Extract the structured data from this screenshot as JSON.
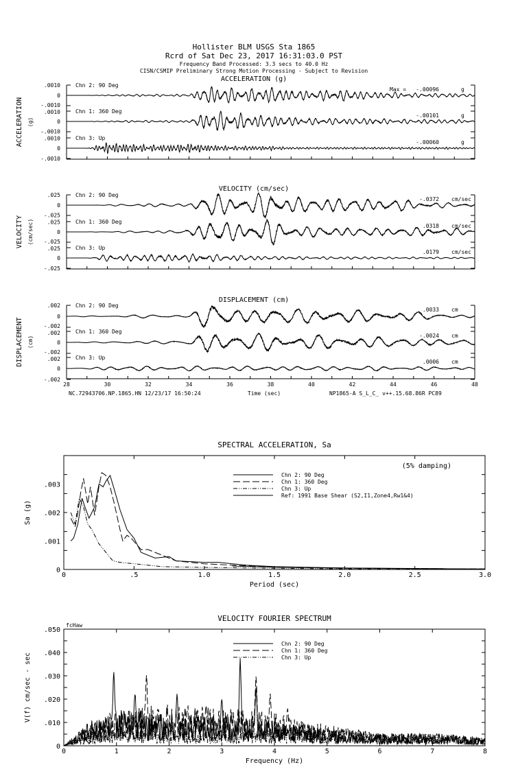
{
  "header": {
    "line1": "Hollister BLM    USGS Sta 1865",
    "line2": "Rcrd of Sat Dec 23, 2017 16:31:03.0 PST",
    "line3": "Frequency Band Processed: 3.3 secs to 40.0 Hz",
    "line4": "CISN/CSMIP Preliminary Strong Motion Processing - Subject to Revision"
  },
  "footer": {
    "left": "NC.72943706.NP.1865.HN 12/23/17 16:50:24",
    "right": "NP1865-A  S_L_C_  v++.15.68.86R PC89"
  },
  "chart_data": [
    {
      "type": "line",
      "title": "ACCELERATION (g)",
      "ylabel": "ACCELERATION",
      "yunit": "(g)",
      "xlabel": "Time (sec)",
      "xlim": [
        28,
        48
      ],
      "xticks": [
        "28",
        "30",
        "32",
        "34",
        "36",
        "38",
        "40",
        "42",
        "44",
        "46",
        "48"
      ],
      "ytick_labels": [
        ".0010",
        "0",
        "-.0010"
      ],
      "ylim": [
        -0.001,
        0.001
      ],
      "max_prefix": "Max =",
      "channels": [
        {
          "name": "Chn 2: 90 Deg",
          "peak": "-.00096",
          "unit": "g",
          "dominant_freq_hz": 3,
          "envelope": [
            0,
            0,
            5e-05,
            0.0001,
            0.0001,
            0.0001,
            0.0001,
            0.0009,
            0.0007,
            0.0006,
            0.0008,
            0.0005,
            0.0004,
            0.0005,
            0.0005,
            0.0003,
            0.0003,
            0.0002,
            0.0002,
            0.0002,
            0.0001
          ]
        },
        {
          "name": "Chn 1: 360 Deg",
          "peak": "-.00101",
          "unit": "g",
          "dominant_freq_hz": 3,
          "envelope": [
            0,
            0,
            5e-05,
            0.0001,
            0.0001,
            0.0001,
            0.0001,
            0.001,
            0.0008,
            0.0006,
            0.0006,
            0.0004,
            0.0003,
            0.0003,
            0.0003,
            0.0003,
            0.0002,
            0.0002,
            0.0002,
            0.0002,
            0.0001
          ]
        },
        {
          "name": "Chn 3: Up",
          "peak": "-.00060",
          "unit": "g",
          "dominant_freq_hz": 6,
          "envelope": [
            0,
            0,
            0.0005,
            0.0004,
            0.0003,
            0.0003,
            0.0004,
            0.0003,
            0.0002,
            0.0002,
            0.0002,
            0.0001,
            0.0001,
            0.0001,
            0.0001,
            0.0001,
            0.0001,
            0.0001,
            0.0001,
            0.0001,
            5e-05
          ]
        }
      ]
    },
    {
      "type": "line",
      "title": "VELOCITY (cm/sec)",
      "ylabel": "VELOCITY",
      "yunit": "(cm/sec)",
      "xlim": [
        28,
        48
      ],
      "ytick_labels": [
        ".025",
        "0",
        "-.025"
      ],
      "ylim": [
        -0.025,
        0.025
      ],
      "channels": [
        {
          "name": "Chn 2: 90 Deg",
          "peak": "-.0372",
          "unit": "cm/sec",
          "dominant_freq_hz": 1.5,
          "envelope": [
            0,
            0,
            0.001,
            0.003,
            0.004,
            0.004,
            0.003,
            0.03,
            0.02,
            0.02,
            0.035,
            0.02,
            0.015,
            0.02,
            0.015,
            0.015,
            0.015,
            0.01,
            0.007,
            0.005,
            0.005
          ]
        },
        {
          "name": "Chn 1: 360 Deg",
          "peak": ".0318",
          "unit": "cm/sec",
          "dominant_freq_hz": 1.5,
          "envelope": [
            0,
            0,
            0.001,
            0.002,
            0.003,
            0.003,
            0.005,
            0.03,
            0.022,
            0.02,
            0.03,
            0.015,
            0.012,
            0.012,
            0.01,
            0.01,
            0.01,
            0.01,
            0.01,
            0.008,
            0.006
          ]
        },
        {
          "name": "Chn 3: Up",
          "peak": ".0179",
          "unit": "cm/sec",
          "dominant_freq_hz": 2.5,
          "envelope": [
            0,
            0,
            0.008,
            0.007,
            0.009,
            0.008,
            0.009,
            0.008,
            0.007,
            0.006,
            0.004,
            0.004,
            0.003,
            0.003,
            0.003,
            0.003,
            0.002,
            0.002,
            0.002,
            0.002,
            0.001
          ]
        }
      ]
    },
    {
      "type": "line",
      "title": "DISPLACEMENT (cm)",
      "ylabel": "DISPLACEMENT",
      "yunit": "(cm)",
      "xlim": [
        28,
        48
      ],
      "ytick_labels": [
        ".002",
        "0",
        "-.002"
      ],
      "ylim": [
        -0.002,
        0.002
      ],
      "channels": [
        {
          "name": "Chn 2: 90 Deg",
          "peak": ".0033",
          "unit": "cm",
          "dominant_freq_hz": 1,
          "envelope": [
            0,
            0.0001,
            0.0001,
            0.0002,
            0.0003,
            0.0003,
            0.0002,
            0.0028,
            0.0013,
            0.0012,
            0.0018,
            0.0012,
            0.0015,
            0.0015,
            0.001,
            0.001,
            0.001,
            0.0008,
            0.0005,
            0.0003,
            0.0003
          ]
        },
        {
          "name": "Chn 1: 360 Deg",
          "peak": "-.0024",
          "unit": "cm",
          "dominant_freq_hz": 1,
          "envelope": [
            0,
            0.0001,
            0.0001,
            0.0002,
            0.0003,
            0.0003,
            0.0003,
            0.0022,
            0.0015,
            0.0012,
            0.0018,
            0.0012,
            0.0012,
            0.0012,
            0.001,
            0.001,
            0.0008,
            0.0008,
            0.0006,
            0.0006,
            0.0004
          ]
        },
        {
          "name": "Chn 3: Up",
          "peak": ".0006",
          "unit": "cm",
          "dominant_freq_hz": 1.2,
          "envelope": [
            0,
            0.0001,
            0.0004,
            0.0004,
            0.0004,
            0.0004,
            0.0004,
            0.0004,
            0.0004,
            0.0004,
            0.0004,
            0.0004,
            0.0004,
            0.0004,
            0.0004,
            0.0004,
            0.0003,
            0.0003,
            0.0003,
            0.0003,
            0.0002
          ]
        }
      ]
    },
    {
      "type": "line",
      "title": "SPECTRAL ACCELERATION, Sa",
      "xlabel": "Period (sec)",
      "ylabel": "Sa (g)",
      "annotation": "(5% damping)",
      "xlim": [
        0,
        3.0
      ],
      "ylim": [
        0,
        0.004
      ],
      "xticks": [
        "0",
        ".5",
        "1.0",
        "1.5",
        "2.0",
        "2.5",
        "3.0"
      ],
      "yticks": [
        "0",
        ".001",
        ".002",
        ".003"
      ],
      "legend": "top-right",
      "series": [
        {
          "name": "Chn 2: 90 Deg",
          "style": "solid",
          "points": [
            [
              0.05,
              0.001
            ],
            [
              0.07,
              0.0011
            ],
            [
              0.1,
              0.0016
            ],
            [
              0.13,
              0.0025
            ],
            [
              0.15,
              0.0022
            ],
            [
              0.18,
              0.0018
            ],
            [
              0.22,
              0.0022
            ],
            [
              0.25,
              0.003
            ],
            [
              0.28,
              0.0029
            ],
            [
              0.3,
              0.0031
            ],
            [
              0.33,
              0.0033
            ],
            [
              0.36,
              0.0028
            ],
            [
              0.4,
              0.0021
            ],
            [
              0.45,
              0.0014
            ],
            [
              0.5,
              0.0011
            ],
            [
              0.55,
              0.0006
            ],
            [
              0.65,
              0.0004
            ],
            [
              0.75,
              0.00045
            ],
            [
              0.8,
              0.0003
            ],
            [
              1.0,
              0.00025
            ],
            [
              1.1,
              0.00025
            ],
            [
              1.3,
              0.00015
            ],
            [
              1.5,
              0.0001
            ],
            [
              2.0,
              5e-05
            ],
            [
              2.5,
              3e-05
            ],
            [
              3.0,
              2e-05
            ]
          ]
        },
        {
          "name": "Chn 1: 360 Deg",
          "style": "dashed",
          "points": [
            [
              0.05,
              0.0018
            ],
            [
              0.08,
              0.0015
            ],
            [
              0.1,
              0.002
            ],
            [
              0.12,
              0.0027
            ],
            [
              0.14,
              0.0032
            ],
            [
              0.17,
              0.0023
            ],
            [
              0.19,
              0.0029
            ],
            [
              0.22,
              0.0019
            ],
            [
              0.25,
              0.0029
            ],
            [
              0.27,
              0.0034
            ],
            [
              0.3,
              0.0033
            ],
            [
              0.33,
              0.0029
            ],
            [
              0.36,
              0.0023
            ],
            [
              0.4,
              0.0014
            ],
            [
              0.42,
              0.001
            ],
            [
              0.45,
              0.0012
            ],
            [
              0.48,
              0.0011
            ],
            [
              0.55,
              0.0007
            ],
            [
              0.6,
              0.0007
            ],
            [
              0.7,
              0.0005
            ],
            [
              0.8,
              0.0003
            ],
            [
              1.0,
              0.0002
            ],
            [
              1.5,
              8e-05
            ],
            [
              2.0,
              4e-05
            ],
            [
              3.0,
              2e-05
            ]
          ]
        },
        {
          "name": "Chn 3: Up",
          "style": "dash-dot",
          "points": [
            [
              0.05,
              0.002
            ],
            [
              0.08,
              0.0016
            ],
            [
              0.11,
              0.0025
            ],
            [
              0.14,
              0.0022
            ],
            [
              0.17,
              0.0016
            ],
            [
              0.2,
              0.0014
            ],
            [
              0.25,
              0.0009
            ],
            [
              0.3,
              0.0006
            ],
            [
              0.35,
              0.0003
            ],
            [
              0.4,
              0.00025
            ],
            [
              0.5,
              0.0002
            ],
            [
              0.7,
              0.0001
            ],
            [
              0.9,
              8e-05
            ],
            [
              1.5,
              4e-05
            ],
            [
              2.0,
              2e-05
            ],
            [
              3.0,
              1e-05
            ]
          ]
        },
        {
          "name": "Ref: 1991 Base Shear (S2,I1,Zone4,Rw1&4)",
          "style": "gray-thick",
          "points": [
            [
              1.2,
              0.00012
            ],
            [
              1.5,
              8e-05
            ],
            [
              2.0,
              5e-05
            ],
            [
              2.7,
              3e-05
            ]
          ]
        }
      ]
    },
    {
      "type": "line",
      "title": "VELOCITY FOURIER SPECTRUM",
      "corner_label": "fcHaw",
      "xlabel": "Frequency (Hz)",
      "ylabel": "V(f)   cm/sec - sec",
      "xlim": [
        0,
        8
      ],
      "ylim": [
        0,
        0.05
      ],
      "xticks": [
        "0",
        "1",
        "2",
        "3",
        "4",
        "5",
        "6",
        "7",
        "8"
      ],
      "yticks": [
        "0",
        ".010",
        ".020",
        ".030",
        ".040",
        ".050"
      ],
      "legend": "top-center",
      "series": [
        {
          "name": "Chn 2: 90 Deg",
          "style": "solid",
          "background": [
            [
              0,
              0
            ],
            [
              0.5,
              0.006
            ],
            [
              1,
              0.009
            ],
            [
              2,
              0.008
            ],
            [
              3,
              0.007
            ],
            [
              4,
              0.006
            ],
            [
              5,
              0.004
            ],
            [
              6,
              0.003
            ],
            [
              7,
              0.003
            ],
            [
              8,
              0.002
            ]
          ],
          "peaks": [
            [
              0.95,
              0.032
            ],
            [
              2.15,
              0.023
            ],
            [
              3.0,
              0.021
            ],
            [
              3.35,
              0.038
            ],
            [
              3.65,
              0.025
            ],
            [
              1.35,
              0.024
            ]
          ]
        },
        {
          "name": "Chn 1: 360 Deg",
          "style": "dashed",
          "background": [
            [
              0,
              0
            ],
            [
              0.5,
              0.005
            ],
            [
              1,
              0.009
            ],
            [
              2,
              0.01
            ],
            [
              3,
              0.009
            ],
            [
              4,
              0.008
            ],
            [
              5,
              0.005
            ],
            [
              6,
              0.003
            ],
            [
              7,
              0.002
            ],
            [
              8,
              0.002
            ]
          ],
          "peaks": [
            [
              1.57,
              0.031
            ],
            [
              3.65,
              0.031
            ],
            [
              3.92,
              0.023
            ],
            [
              4.25,
              0.017
            ],
            [
              2.7,
              0.018
            ]
          ]
        },
        {
          "name": "Chn 3: Up",
          "style": "dash-dot",
          "background": [
            [
              0,
              0
            ],
            [
              0.5,
              0.004
            ],
            [
              1,
              0.004
            ],
            [
              2,
              0.004
            ],
            [
              3,
              0.004
            ],
            [
              4,
              0.004
            ],
            [
              5,
              0.004
            ],
            [
              6,
              0.003
            ],
            [
              7,
              0.003
            ],
            [
              8,
              0.002
            ]
          ],
          "peaks": [
            [
              5.6,
              0.007
            ],
            [
              7.4,
              0.005
            ]
          ]
        }
      ]
    }
  ],
  "colors": {
    "ink": "#000000",
    "reference": "#777777",
    "background": "#ffffff"
  }
}
